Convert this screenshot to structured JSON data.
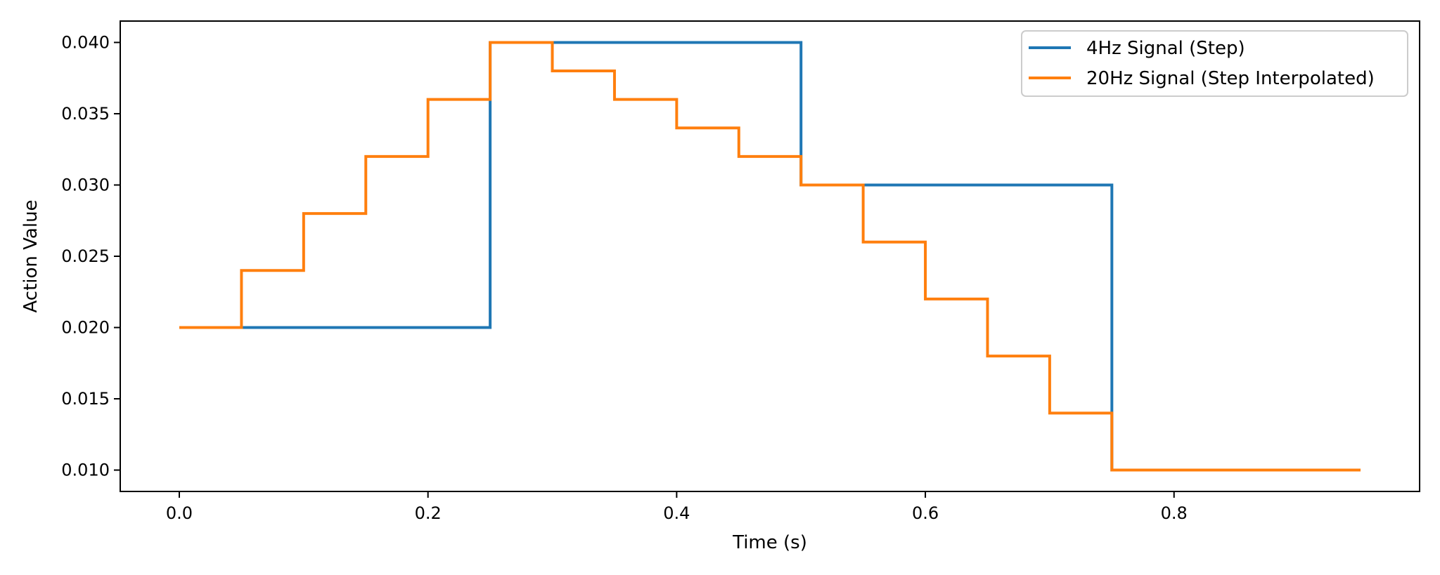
{
  "chart_data": {
    "type": "line",
    "xlabel": "Time (s)",
    "ylabel": "Action Value",
    "xlim": [
      -0.0475,
      0.9975
    ],
    "ylim": [
      0.0085,
      0.0415
    ],
    "x_ticks": [
      0.0,
      0.2,
      0.4,
      0.6,
      0.8
    ],
    "x_tick_labels": [
      "0.0",
      "0.2",
      "0.4",
      "0.6",
      "0.8"
    ],
    "y_ticks": [
      0.01,
      0.015,
      0.02,
      0.025,
      0.03,
      0.035,
      0.04
    ],
    "y_tick_labels": [
      "0.010",
      "0.015",
      "0.020",
      "0.025",
      "0.030",
      "0.035",
      "0.040"
    ],
    "grid": false,
    "legend_position": "top-right",
    "step_style": "post",
    "series": [
      {
        "name": "4Hz Signal (Step)",
        "color": "#1f77b4",
        "x": [
          0.0,
          0.05,
          0.1,
          0.15,
          0.2,
          0.25,
          0.3,
          0.35,
          0.4,
          0.45,
          0.5,
          0.55,
          0.6,
          0.65,
          0.7,
          0.75,
          0.8,
          0.85,
          0.9,
          0.95
        ],
        "y": [
          0.02,
          0.02,
          0.02,
          0.02,
          0.02,
          0.04,
          0.04,
          0.04,
          0.04,
          0.04,
          0.03,
          0.03,
          0.03,
          0.03,
          0.03,
          0.01,
          0.01,
          0.01,
          0.01,
          0.01
        ]
      },
      {
        "name": "20Hz Signal (Step Interpolated)",
        "color": "#ff7f0e",
        "x": [
          0.0,
          0.05,
          0.1,
          0.15,
          0.2,
          0.25,
          0.3,
          0.35,
          0.4,
          0.45,
          0.5,
          0.55,
          0.6,
          0.65,
          0.7,
          0.75,
          0.8,
          0.85,
          0.9,
          0.95
        ],
        "y": [
          0.02,
          0.024,
          0.028,
          0.032,
          0.036,
          0.04,
          0.038,
          0.036,
          0.034,
          0.032,
          0.03,
          0.026,
          0.022,
          0.018,
          0.014,
          0.01,
          0.01,
          0.01,
          0.01,
          0.01
        ]
      }
    ]
  }
}
